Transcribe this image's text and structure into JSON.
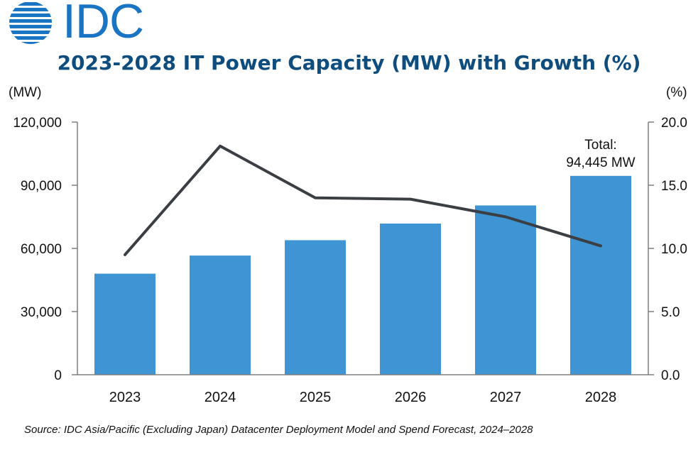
{
  "logo": {
    "text": "IDC"
  },
  "chart_data": {
    "type": "bar",
    "title": "2023-2028 IT Power Capacity (MW) with Growth (%)",
    "categories": [
      "2023",
      "2024",
      "2025",
      "2026",
      "2027",
      "2028"
    ],
    "series": [
      {
        "type": "bar",
        "axis": "left",
        "values": [
          48000,
          56600,
          63900,
          71800,
          80400,
          94445
        ],
        "color": "#3f95d3"
      },
      {
        "type": "line",
        "axis": "right",
        "values": [
          9.5,
          18.1,
          14.0,
          13.9,
          12.5,
          10.2
        ],
        "color": "#3b3f44"
      }
    ],
    "left_axis": {
      "unit": "(MW)",
      "ylim": [
        0,
        120000
      ],
      "ticks": [
        0,
        30000,
        60000,
        90000,
        120000
      ],
      "tick_labels": [
        "0",
        "30,000",
        "60,000",
        "90,000",
        "120,000"
      ]
    },
    "right_axis": {
      "unit": "(%)",
      "ylim": [
        0,
        20
      ],
      "ticks": [
        0,
        5,
        10,
        15,
        20
      ],
      "tick_labels": [
        "0.0",
        "5.0",
        "10.0",
        "15.0",
        "20.0"
      ]
    },
    "annotation": {
      "category": "2028",
      "lines": [
        "Total:",
        "94,445 MW"
      ]
    },
    "grid": false
  },
  "source": "Source: IDC Asia/Pacific (Excluding Japan) Datacenter Deployment Model and Spend Forecast, 2024–2028"
}
